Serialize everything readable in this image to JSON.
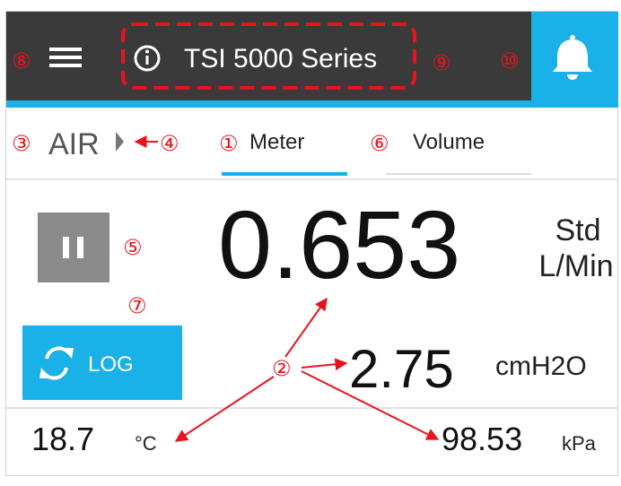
{
  "header": {
    "title": "TSI 5000 Series"
  },
  "gas": "AIR",
  "tabs": [
    "Meter",
    "Volume"
  ],
  "flow": {
    "value": "0.653",
    "unit_line1": "Std",
    "unit_line2": "L/Min"
  },
  "pressure": {
    "value": "2.75",
    "unit": "cmH2O"
  },
  "temperature": {
    "value": "18.7",
    "unit": "°C"
  },
  "absolute_pressure": {
    "value": "98.53",
    "unit": "kPa"
  },
  "log_button": "LOG",
  "annotations": [
    "①",
    "②",
    "③",
    "④",
    "⑤",
    "⑥",
    "⑦",
    "⑧",
    "⑨",
    "⑩"
  ]
}
